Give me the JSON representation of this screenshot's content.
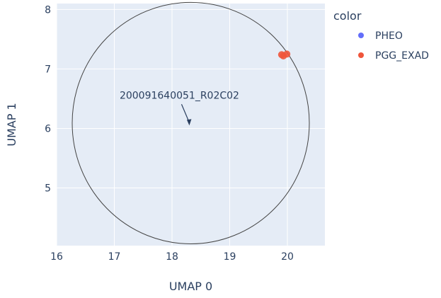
{
  "chart_data": {
    "type": "scatter",
    "xlabel": "UMAP 0",
    "ylabel": "UMAP 1",
    "xlim": [
      16,
      20.65
    ],
    "ylim": [
      4.03,
      8.1
    ],
    "x_ticks": [
      16,
      17,
      18,
      19,
      20
    ],
    "y_ticks": [
      5,
      6,
      7,
      8
    ],
    "grid": true,
    "background_color": "#e5ecf6",
    "legend": {
      "title": "color",
      "placement": "top-right",
      "entries": [
        {
          "name": "PHEO",
          "color": "#636efa"
        },
        {
          "name": "PGG_EXAD",
          "color": "#ef553b"
        }
      ]
    },
    "series": [
      {
        "name": "PHEO",
        "color": "#636efa",
        "points": []
      },
      {
        "name": "PGG_EXAD",
        "color": "#ef553b",
        "points": [
          {
            "x": 19.93,
            "y": 7.22
          },
          {
            "x": 19.99,
            "y": 7.25
          },
          {
            "x": 19.9,
            "y": 7.24
          }
        ]
      }
    ],
    "shape": {
      "type": "circle",
      "x0": 16.27,
      "x1": 20.38,
      "y0": 4.06,
      "y1": 8.12,
      "line_color": "#444444"
    },
    "annotation": {
      "text": "200091640051_R02C02",
      "x": 18.3,
      "y": 6.05,
      "arrow": true
    }
  }
}
